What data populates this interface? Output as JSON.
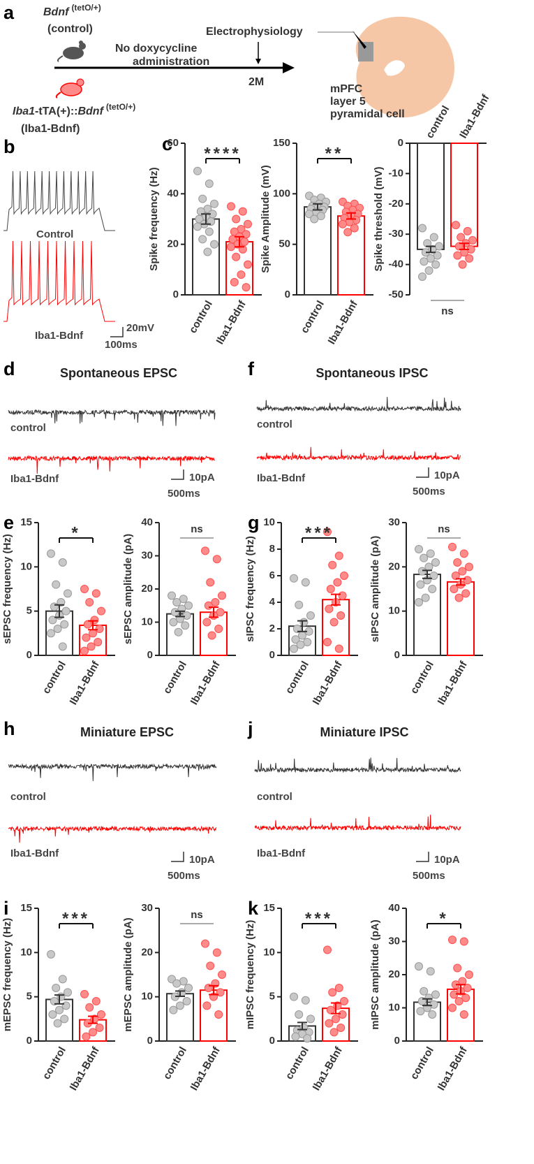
{
  "panel_labels": [
    "a",
    "b",
    "c",
    "d",
    "e",
    "f",
    "g",
    "h",
    "i",
    "j",
    "k"
  ],
  "schematic": {
    "control_gene": "Bdnf",
    "control_allele": "(tetO/+)",
    "control_name": "(control)",
    "treatment": [
      "No doxycycline",
      "administration"
    ],
    "method": "Electrophysiology",
    "age": "2M",
    "model_gene_prefix": "Iba1",
    "model_transgene": "-tTA(+)::",
    "model_gene": "Bdnf",
    "model_allele": "(tetO/+)",
    "model_name": "(Iba1-Bdnf)",
    "cell": [
      "mPFC",
      "layer 5",
      "pyramidal cell"
    ]
  },
  "traces": [
    {
      "label1": "Control",
      "label2": "Iba1-Bdnf",
      "scale_y": "20mV",
      "scale_x": "100ms"
    },
    {
      "title": "Spontaneous EPSC",
      "label1": "control",
      "label2": "Iba1-Bdnf",
      "scale_y": "10pA",
      "scale_x": "500ms"
    },
    {
      "title": "Spontaneous IPSC",
      "label1": "control",
      "label2": "Iba1-Bdnf",
      "scale_y": "10pA",
      "scale_x": "500ms"
    },
    {
      "title": "Miniature EPSC",
      "label1": "control",
      "label2": "Iba1-Bdnf",
      "scale_y": "10pA",
      "scale_x": "500ms"
    },
    {
      "title": "Miniature IPSC",
      "label1": "control",
      "label2": "Iba1-Bdnf",
      "scale_y": "10pA",
      "scale_x": "500ms"
    }
  ],
  "chart_data": [
    {
      "type": "bar",
      "ylabel": "Spike frequency (Hz)",
      "categories": [
        "control",
        "Iba1-Bdnf"
      ],
      "values": [
        30,
        21
      ],
      "errors": [
        2,
        2
      ],
      "points": [
        [
          49,
          44,
          38,
          36,
          34,
          33,
          32,
          31,
          30,
          29,
          28,
          27,
          25,
          22,
          20,
          17
        ],
        [
          35,
          33,
          30,
          28,
          26,
          25,
          24,
          23,
          22,
          21,
          20,
          19,
          18,
          15,
          12,
          8,
          5,
          3
        ]
      ],
      "colors": [
        "#333333",
        "#ff0000"
      ],
      "point_colors": [
        "#c8c8c8",
        "#ff8a8a"
      ],
      "significance": "****",
      "ylim": [
        0,
        60
      ],
      "yticks": [
        0,
        20,
        40,
        60
      ]
    },
    {
      "type": "bar",
      "ylabel": "Spike Amplitude (mV)",
      "categories": [
        "control",
        "Iba1-Bdnf"
      ],
      "values": [
        87,
        78
      ],
      "errors": [
        3,
        3
      ],
      "points": [
        [
          98,
          96,
          94,
          92,
          90,
          88,
          87,
          86,
          85,
          84,
          82,
          80,
          78,
          75
        ],
        [
          92,
          90,
          88,
          86,
          84,
          82,
          80,
          78,
          76,
          74,
          72,
          70,
          66,
          62
        ]
      ],
      "colors": [
        "#333333",
        "#ff0000"
      ],
      "point_colors": [
        "#c8c8c8",
        "#ff8a8a"
      ],
      "significance": "**",
      "ylim": [
        0,
        150
      ],
      "yticks": [
        0,
        50,
        100,
        150
      ]
    },
    {
      "type": "bar",
      "ylabel": "Spike threshold (mV)",
      "categories": [
        "control",
        "Iba1-Bdnf"
      ],
      "values": [
        -35,
        -34
      ],
      "errors": [
        1,
        1
      ],
      "points": [
        [
          -28,
          -31,
          -33,
          -34,
          -35,
          -36,
          -37,
          -38,
          -39,
          -40,
          -42,
          -44
        ],
        [
          -27,
          -29,
          -31,
          -32,
          -33,
          -34,
          -35,
          -36,
          -37,
          -38,
          -40
        ]
      ],
      "colors": [
        "#333333",
        "#ff0000"
      ],
      "point_colors": [
        "#c8c8c8",
        "#ff8a8a"
      ],
      "significance": "ns",
      "ylim": [
        -50,
        0
      ],
      "yticks": [
        0,
        -10,
        -20,
        -30,
        -40,
        -50
      ]
    },
    {
      "type": "bar",
      "ylabel": "sEPSC frequency (Hz)",
      "categories": [
        "control",
        "Iba1-Bdnf"
      ],
      "values": [
        5.0,
        3.4
      ],
      "errors": [
        0.7,
        0.5
      ],
      "points": [
        [
          11.5,
          10.5,
          8,
          7,
          6,
          5.5,
          5,
          4.5,
          4,
          3.5,
          3,
          2.5,
          1
        ],
        [
          7.5,
          7,
          6,
          5,
          4,
          3.5,
          3,
          2.5,
          2,
          1.5,
          1,
          0.5
        ]
      ],
      "colors": [
        "#333333",
        "#ff0000"
      ],
      "point_colors": [
        "#c8c8c8",
        "#ff8a8a"
      ],
      "significance": "*",
      "ylim": [
        0,
        15
      ],
      "yticks": [
        0,
        5,
        10,
        15
      ]
    },
    {
      "type": "bar",
      "ylabel": "sEPSC amplitude (pA)",
      "categories": [
        "control",
        "Iba1-Bdnf"
      ],
      "values": [
        12.5,
        13
      ],
      "errors": [
        0.8,
        1.5
      ],
      "points": [
        [
          18,
          17,
          16,
          15,
          14,
          13,
          12,
          11,
          10,
          9,
          7
        ],
        [
          31.5,
          29,
          22,
          18,
          16,
          15,
          13,
          12,
          10,
          8,
          6
        ]
      ],
      "colors": [
        "#333333",
        "#ff0000"
      ],
      "point_colors": [
        "#c8c8c8",
        "#ff8a8a"
      ],
      "significance": "ns",
      "ylim": [
        0,
        40
      ],
      "yticks": [
        0,
        10,
        20,
        30,
        40
      ]
    },
    {
      "type": "bar",
      "ylabel": "sIPSC frequency (Hz)",
      "categories": [
        "control",
        "Iba1-Bdnf"
      ],
      "values": [
        2.2,
        4.2
      ],
      "errors": [
        0.4,
        0.4
      ],
      "points": [
        [
          5.8,
          5.5,
          3.8,
          3,
          2.5,
          2,
          1.8,
          1.5,
          1.2,
          1,
          0.8,
          0.5
        ],
        [
          9.3,
          7.5,
          6.8,
          6,
          5.5,
          5,
          4.5,
          4,
          3.5,
          3,
          2.5,
          1,
          0.5
        ]
      ],
      "colors": [
        "#333333",
        "#ff0000"
      ],
      "point_colors": [
        "#c8c8c8",
        "#ff8a8a"
      ],
      "significance": "***",
      "ylim": [
        0,
        10
      ],
      "yticks": [
        0,
        2,
        4,
        6,
        8,
        10
      ]
    },
    {
      "type": "bar",
      "ylabel": "sIPSC amplitude (pA)",
      "categories": [
        "control",
        "Iba1-Bdnf"
      ],
      "values": [
        18.3,
        16.6
      ],
      "errors": [
        0.9,
        0.7
      ],
      "points": [
        [
          24,
          23,
          22,
          21,
          20,
          19,
          18,
          17,
          16,
          15,
          13,
          12
        ],
        [
          24.5,
          23,
          21,
          20,
          19,
          18,
          17,
          16,
          15,
          14,
          13
        ]
      ],
      "colors": [
        "#333333",
        "#ff0000"
      ],
      "point_colors": [
        "#c8c8c8",
        "#ff8a8a"
      ],
      "significance": "ns",
      "ylim": [
        0,
        30
      ],
      "yticks": [
        0,
        10,
        20,
        30
      ]
    },
    {
      "type": "bar",
      "ylabel": "mEPSC frequency (Hz)",
      "categories": [
        "control",
        "Iba1-Bdnf"
      ],
      "values": [
        4.7,
        2.4
      ],
      "errors": [
        0.5,
        0.4
      ],
      "points": [
        [
          9.8,
          7,
          6,
          5.5,
          5,
          4.5,
          4,
          3.5,
          3,
          2.5,
          2
        ],
        [
          5.3,
          4.5,
          3.8,
          3,
          2.5,
          2,
          1.5,
          1,
          0.5
        ]
      ],
      "colors": [
        "#333333",
        "#ff0000"
      ],
      "point_colors": [
        "#c8c8c8",
        "#ff8a8a"
      ],
      "significance": "***",
      "ylim": [
        0,
        15
      ],
      "yticks": [
        0,
        5,
        10,
        15
      ]
    },
    {
      "type": "bar",
      "ylabel": "mEPSC amplitude (pA)",
      "categories": [
        "control",
        "Iba1-Bdnf"
      ],
      "values": [
        10.7,
        11.5
      ],
      "errors": [
        0.6,
        1.0
      ],
      "points": [
        [
          14,
          13.5,
          13,
          12,
          11,
          10,
          9,
          8,
          7
        ],
        [
          22,
          20,
          17,
          15,
          13,
          12,
          11,
          10,
          8,
          6
        ]
      ],
      "colors": [
        "#333333",
        "#ff0000"
      ],
      "point_colors": [
        "#c8c8c8",
        "#ff8a8a"
      ],
      "significance": "ns",
      "ylim": [
        0,
        30
      ],
      "yticks": [
        0,
        10,
        20,
        30
      ]
    },
    {
      "type": "bar",
      "ylabel": "mIPSC frequency (Hz)",
      "categories": [
        "control",
        "Iba1-Bdnf"
      ],
      "values": [
        1.7,
        3.7
      ],
      "errors": [
        0.4,
        0.6
      ],
      "points": [
        [
          5,
          4.6,
          3,
          2.5,
          1.5,
          1.2,
          1,
          0.8,
          0.5,
          0.3
        ],
        [
          10.3,
          6,
          5.5,
          4.5,
          4,
          3.5,
          3,
          2.5,
          2,
          1.5,
          1
        ]
      ],
      "colors": [
        "#333333",
        "#ff0000"
      ],
      "point_colors": [
        "#c8c8c8",
        "#ff8a8a"
      ],
      "significance": "***",
      "ylim": [
        0,
        15
      ],
      "yticks": [
        0,
        5,
        10,
        15
      ]
    },
    {
      "type": "bar",
      "ylabel": "mIPSC amplitude (pA)",
      "categories": [
        "control",
        "Iba1-Bdnf"
      ],
      "values": [
        11.7,
        15.6
      ],
      "errors": [
        1.0,
        1.4
      ],
      "points": [
        [
          22.5,
          21,
          15,
          14,
          13,
          12,
          11,
          10,
          9,
          8
        ],
        [
          30.5,
          30,
          22,
          20,
          18,
          17,
          16,
          15,
          14,
          13,
          12,
          10,
          8
        ]
      ],
      "colors": [
        "#333333",
        "#ff0000"
      ],
      "point_colors": [
        "#c8c8c8",
        "#ff8a8a"
      ],
      "significance": "*",
      "ylim": [
        0,
        40
      ],
      "yticks": [
        0,
        10,
        20,
        30,
        40
      ]
    }
  ]
}
